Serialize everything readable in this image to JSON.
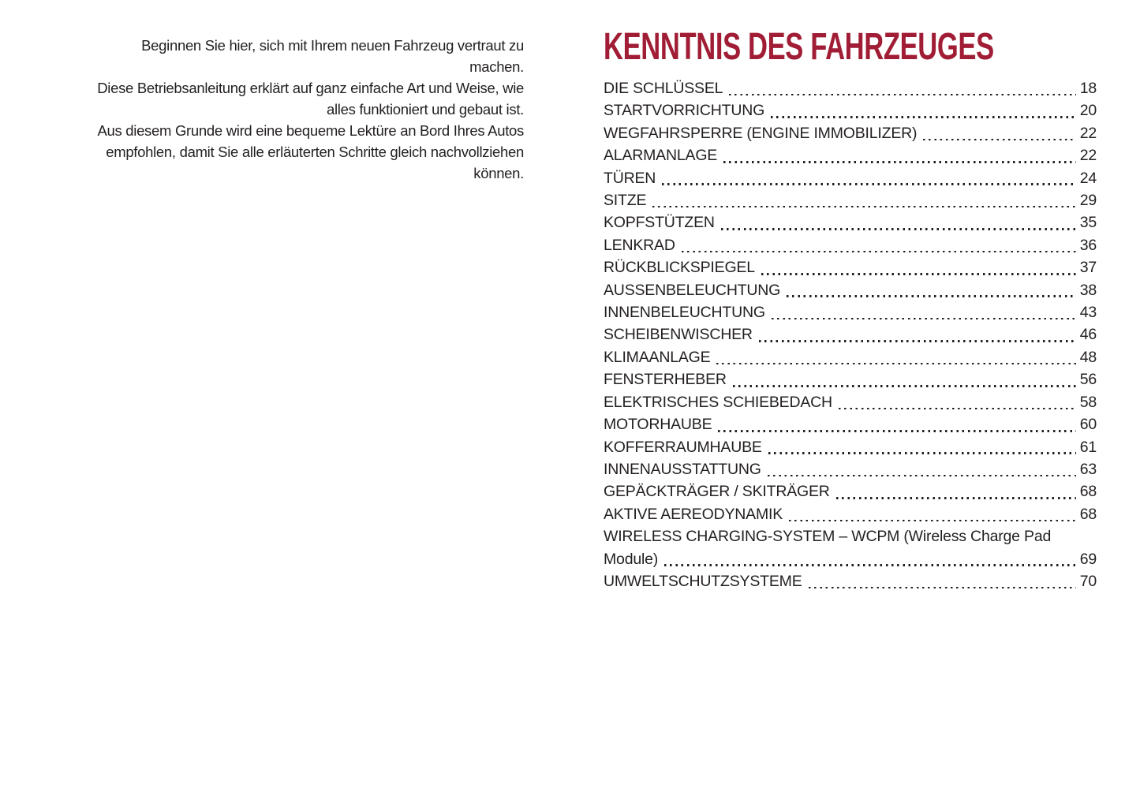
{
  "colors": {
    "accent": "#a01d35",
    "text": "#231f20",
    "background": "#ffffff"
  },
  "intro": {
    "paragraphs": [
      "Beginnen Sie hier, sich mit Ihrem neuen Fahrzeug vertraut zu machen.",
      "Diese Betriebsanleitung erklärt auf ganz einfache Art und Weise, wie alles funktioniert und gebaut ist.",
      "Aus diesem Grunde wird eine bequeme Lektüre an Bord Ihres Autos empfohlen, damit Sie alle erläuterten Schritte gleich nachvollziehen können."
    ]
  },
  "toc": {
    "title": "KENNTNIS DES FAHRZEUGES",
    "entries": [
      {
        "label": "DIE SCHLÜSSEL",
        "page": "18"
      },
      {
        "label": "STARTVORRICHTUNG",
        "page": "20"
      },
      {
        "label": "WEGFAHRSPERRE (ENGINE IMMOBILIZER)",
        "page": "22"
      },
      {
        "label": "ALARMANLAGE",
        "page": "22"
      },
      {
        "label": "TÜREN",
        "page": "24"
      },
      {
        "label": "SITZE",
        "page": "29"
      },
      {
        "label": "KOPFSTÜTZEN",
        "page": "35"
      },
      {
        "label": "LENKRAD",
        "page": "36"
      },
      {
        "label": "RÜCKBLICKSPIEGEL",
        "page": "37"
      },
      {
        "label": "AUSSENBELEUCHTUNG",
        "page": "38"
      },
      {
        "label": "INNENBELEUCHTUNG",
        "page": "43"
      },
      {
        "label": "SCHEIBENWISCHER",
        "page": "46"
      },
      {
        "label": "KLIMAANLAGE",
        "page": "48"
      },
      {
        "label": "FENSTERHEBER",
        "page": "56"
      },
      {
        "label": "ELEKTRISCHES SCHIEBEDACH",
        "page": "58"
      },
      {
        "label": "MOTORHAUBE",
        "page": "60"
      },
      {
        "label": "KOFFERRAUMHAUBE",
        "page": "61"
      },
      {
        "label": "INNENAUSSTATTUNG",
        "page": "63"
      },
      {
        "label": "GEPÄCKTRÄGER / SKITRÄGER",
        "page": "68"
      },
      {
        "label": "AKTIVE AEREODYNAMIK",
        "page": "68"
      },
      {
        "label": "WIRELESS CHARGING-SYSTEM – WCPM (Wireless Charge Pad",
        "page": null
      },
      {
        "label": "Module)",
        "page": "69"
      },
      {
        "label": "UMWELTSCHUTZSYSTEME",
        "page": "70"
      }
    ]
  }
}
